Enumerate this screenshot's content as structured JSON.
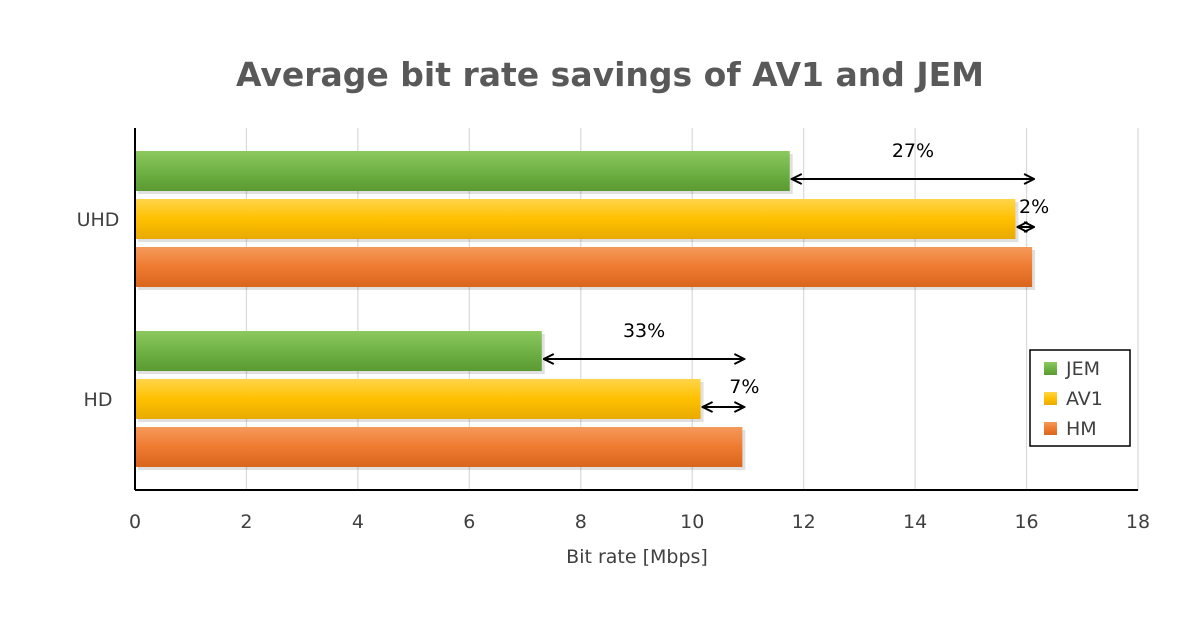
{
  "chart_data": {
    "type": "bar",
    "orientation": "horizontal",
    "title": "Average bit rate savings of AV1 and JEM",
    "xlabel": "Bit rate [Mbps]",
    "ylabel": "",
    "xlim": [
      0,
      18
    ],
    "x_ticks": [
      "0",
      "2",
      "4",
      "6",
      "8",
      "10",
      "12",
      "14",
      "16",
      "18"
    ],
    "categories": [
      "UHD",
      "HD"
    ],
    "series": [
      {
        "name": "JEM",
        "values": [
          11.75,
          7.3
        ],
        "color": "#6aaa3e"
      },
      {
        "name": "AV1",
        "values": [
          15.8,
          10.15
        ],
        "color": "#ffc000"
      },
      {
        "name": "HM",
        "values": [
          16.1,
          10.9
        ],
        "color": "#ed7d31"
      }
    ],
    "annotations": [
      {
        "category": "UHD",
        "series": "JEM",
        "from": 11.75,
        "to": 16.1,
        "label": "27%"
      },
      {
        "category": "UHD",
        "series": "AV1",
        "from": 15.8,
        "to": 16.1,
        "label": "2%"
      },
      {
        "category": "HD",
        "series": "JEM",
        "from": 7.3,
        "to": 10.9,
        "label": "33%"
      },
      {
        "category": "HD",
        "series": "AV1",
        "from": 10.15,
        "to": 10.9,
        "label": "7%"
      }
    ],
    "grid": true,
    "legend_position": "right"
  }
}
